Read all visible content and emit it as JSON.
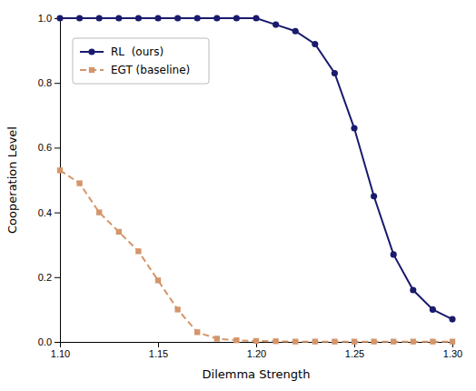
{
  "chart_data": {
    "type": "line",
    "xlabel": "Dilemma Strength",
    "ylabel": "Cooperation Level",
    "x": [
      1.1,
      1.11,
      1.12,
      1.13,
      1.14,
      1.15,
      1.16,
      1.17,
      1.18,
      1.19,
      1.2,
      1.21,
      1.22,
      1.23,
      1.24,
      1.25,
      1.26,
      1.27,
      1.28,
      1.29,
      1.3
    ],
    "series": [
      {
        "name": "RL  (ours)",
        "color": "#1a1a6e",
        "marker": "circle",
        "line_style": "solid",
        "values": [
          1.0,
          1.0,
          1.0,
          1.0,
          1.0,
          1.0,
          1.0,
          1.0,
          1.0,
          1.0,
          1.0,
          0.98,
          0.96,
          0.92,
          0.83,
          0.66,
          0.45,
          0.27,
          0.16,
          0.1,
          0.07
        ]
      },
      {
        "name": "EGT (baseline)",
        "color": "#d4956a",
        "marker": "square",
        "line_style": "dashed",
        "values": [
          0.53,
          0.49,
          0.4,
          0.34,
          0.28,
          0.19,
          0.1,
          0.03,
          0.01,
          0.005,
          0.003,
          0.002,
          0.001,
          0.001,
          0.001,
          0.001,
          0.001,
          0.001,
          0.001,
          0.001,
          0.001
        ]
      }
    ],
    "xlim": [
      1.1,
      1.3
    ],
    "ylim": [
      0.0,
      1.0
    ],
    "xticks": [
      {
        "value": 1.1,
        "label": "1.10"
      },
      1.15,
      {
        "value": 1.2,
        "label": "1.20"
      },
      1.25,
      {
        "value": 1.3,
        "label": "1.30"
      }
    ],
    "yticks": [
      {
        "value": 0,
        "label": "0.0"
      },
      0.2,
      0.4,
      0.6,
      0.8,
      {
        "value": 1,
        "label": "1.0"
      }
    ],
    "grid": false,
    "legend": "upper left"
  }
}
